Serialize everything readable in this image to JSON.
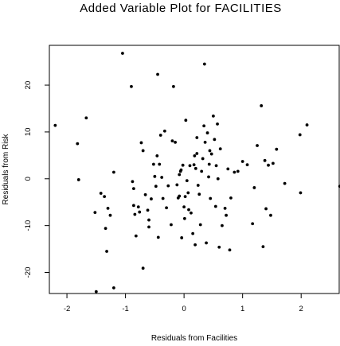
{
  "chart_data": {
    "type": "scatter",
    "title": "Added Variable Plot for FACILITIES",
    "xlabel": "Residuals from Facilities",
    "ylabel": "Residuals from Risk",
    "xlim": [
      -2.3,
      2.65
    ],
    "ylim": [
      -24.5,
      28.5
    ],
    "xticks": [
      -2,
      -1,
      0,
      1,
      2
    ],
    "yticks": [
      -20,
      -10,
      0,
      10,
      20
    ],
    "grid": false,
    "legend": "none",
    "marker_color": "#000000",
    "points": [
      [
        -2.2,
        11.4
      ],
      [
        -1.82,
        7.5
      ],
      [
        -1.8,
        -0.2
      ],
      [
        -1.67,
        13.0
      ],
      [
        -1.52,
        -7.2
      ],
      [
        -1.42,
        -3.1
      ],
      [
        -1.36,
        -3.8
      ],
      [
        -1.34,
        -10.6
      ],
      [
        -1.32,
        -15.5
      ],
      [
        -1.3,
        -6.3
      ],
      [
        -1.26,
        -7.8
      ],
      [
        -1.2,
        1.4
      ],
      [
        -1.2,
        -23.3
      ],
      [
        -1.5,
        -24.1
      ],
      [
        -1.05,
        26.8
      ],
      [
        -0.9,
        19.7
      ],
      [
        -0.88,
        -0.6
      ],
      [
        -0.86,
        -2.1
      ],
      [
        -0.86,
        -5.7
      ],
      [
        -0.84,
        -7.6
      ],
      [
        -0.82,
        -12.2
      ],
      [
        -0.78,
        -6.0
      ],
      [
        -0.76,
        -7.1
      ],
      [
        -0.73,
        7.7
      ],
      [
        -0.7,
        6.0
      ],
      [
        -0.7,
        -19.1
      ],
      [
        -0.66,
        -3.4
      ],
      [
        -0.62,
        -6.7
      ],
      [
        -0.6,
        -8.8
      ],
      [
        -0.6,
        -10.3
      ],
      [
        -0.56,
        -4.3
      ],
      [
        -0.52,
        3.1
      ],
      [
        -0.5,
        0.5
      ],
      [
        -0.48,
        -1.6
      ],
      [
        -0.46,
        4.9
      ],
      [
        -0.44,
        -12.5
      ],
      [
        -0.45,
        22.3
      ],
      [
        -0.42,
        3.1
      ],
      [
        -0.4,
        9.3
      ],
      [
        -0.38,
        0.3
      ],
      [
        -0.36,
        -4.2
      ],
      [
        -0.33,
        10.2
      ],
      [
        -0.3,
        -6.2
      ],
      [
        -0.27,
        -1.5
      ],
      [
        -0.22,
        -9.8
      ],
      [
        -0.2,
        8.1
      ],
      [
        -0.18,
        19.7
      ],
      [
        -0.15,
        7.8
      ],
      [
        -0.12,
        -1.3
      ],
      [
        -0.1,
        -4.1
      ],
      [
        -0.08,
        -3.7
      ],
      [
        -0.08,
        0.9
      ],
      [
        -0.06,
        1.6
      ],
      [
        -0.05,
        1.9
      ],
      [
        -0.04,
        -12.6
      ],
      [
        -0.02,
        2.9
      ],
      [
        0.0,
        -6.0
      ],
      [
        0.01,
        -8.5
      ],
      [
        0.02,
        -3.8
      ],
      [
        0.03,
        12.5
      ],
      [
        0.05,
        -0.4
      ],
      [
        0.07,
        -3.0
      ],
      [
        0.08,
        -6.6
      ],
      [
        0.1,
        2.8
      ],
      [
        0.12,
        -7.3
      ],
      [
        0.15,
        -11.7
      ],
      [
        0.17,
        3.0
      ],
      [
        0.18,
        4.9
      ],
      [
        0.19,
        -14.1
      ],
      [
        0.2,
        2.2
      ],
      [
        0.22,
        8.8
      ],
      [
        0.22,
        5.4
      ],
      [
        0.24,
        -1.4
      ],
      [
        0.26,
        -3.3
      ],
      [
        0.28,
        -9.8
      ],
      [
        0.3,
        1.6
      ],
      [
        0.32,
        4.3
      ],
      [
        0.34,
        11.3
      ],
      [
        0.35,
        24.5
      ],
      [
        0.36,
        7.8
      ],
      [
        0.38,
        -13.7
      ],
      [
        0.4,
        9.8
      ],
      [
        0.42,
        0.4
      ],
      [
        0.43,
        3.1
      ],
      [
        0.44,
        6.0
      ],
      [
        0.45,
        -4.2
      ],
      [
        0.47,
        5.3
      ],
      [
        0.5,
        13.4
      ],
      [
        0.52,
        8.4
      ],
      [
        0.54,
        -5.9
      ],
      [
        0.55,
        2.8
      ],
      [
        0.57,
        11.7
      ],
      [
        0.58,
        0.0
      ],
      [
        0.6,
        -14.6
      ],
      [
        0.62,
        6.4
      ],
      [
        0.65,
        -10.0
      ],
      [
        0.7,
        -6.3
      ],
      [
        0.72,
        -7.8
      ],
      [
        0.75,
        2.1
      ],
      [
        0.78,
        -15.2
      ],
      [
        0.8,
        -4.1
      ],
      [
        0.86,
        1.4
      ],
      [
        0.92,
        1.6
      ],
      [
        1.0,
        3.7
      ],
      [
        1.08,
        3.0
      ],
      [
        1.17,
        -9.6
      ],
      [
        1.2,
        -1.9
      ],
      [
        1.25,
        7.1
      ],
      [
        1.32,
        15.6
      ],
      [
        1.35,
        -14.5
      ],
      [
        1.38,
        3.9
      ],
      [
        1.4,
        -6.4
      ],
      [
        1.44,
        2.9
      ],
      [
        1.48,
        -7.8
      ],
      [
        1.52,
        3.3
      ],
      [
        1.58,
        6.3
      ],
      [
        1.72,
        -1.0
      ],
      [
        1.98,
        9.4
      ],
      [
        1.99,
        -3.0
      ],
      [
        2.1,
        11.5
      ],
      [
        2.66,
        -1.6
      ]
    ]
  }
}
